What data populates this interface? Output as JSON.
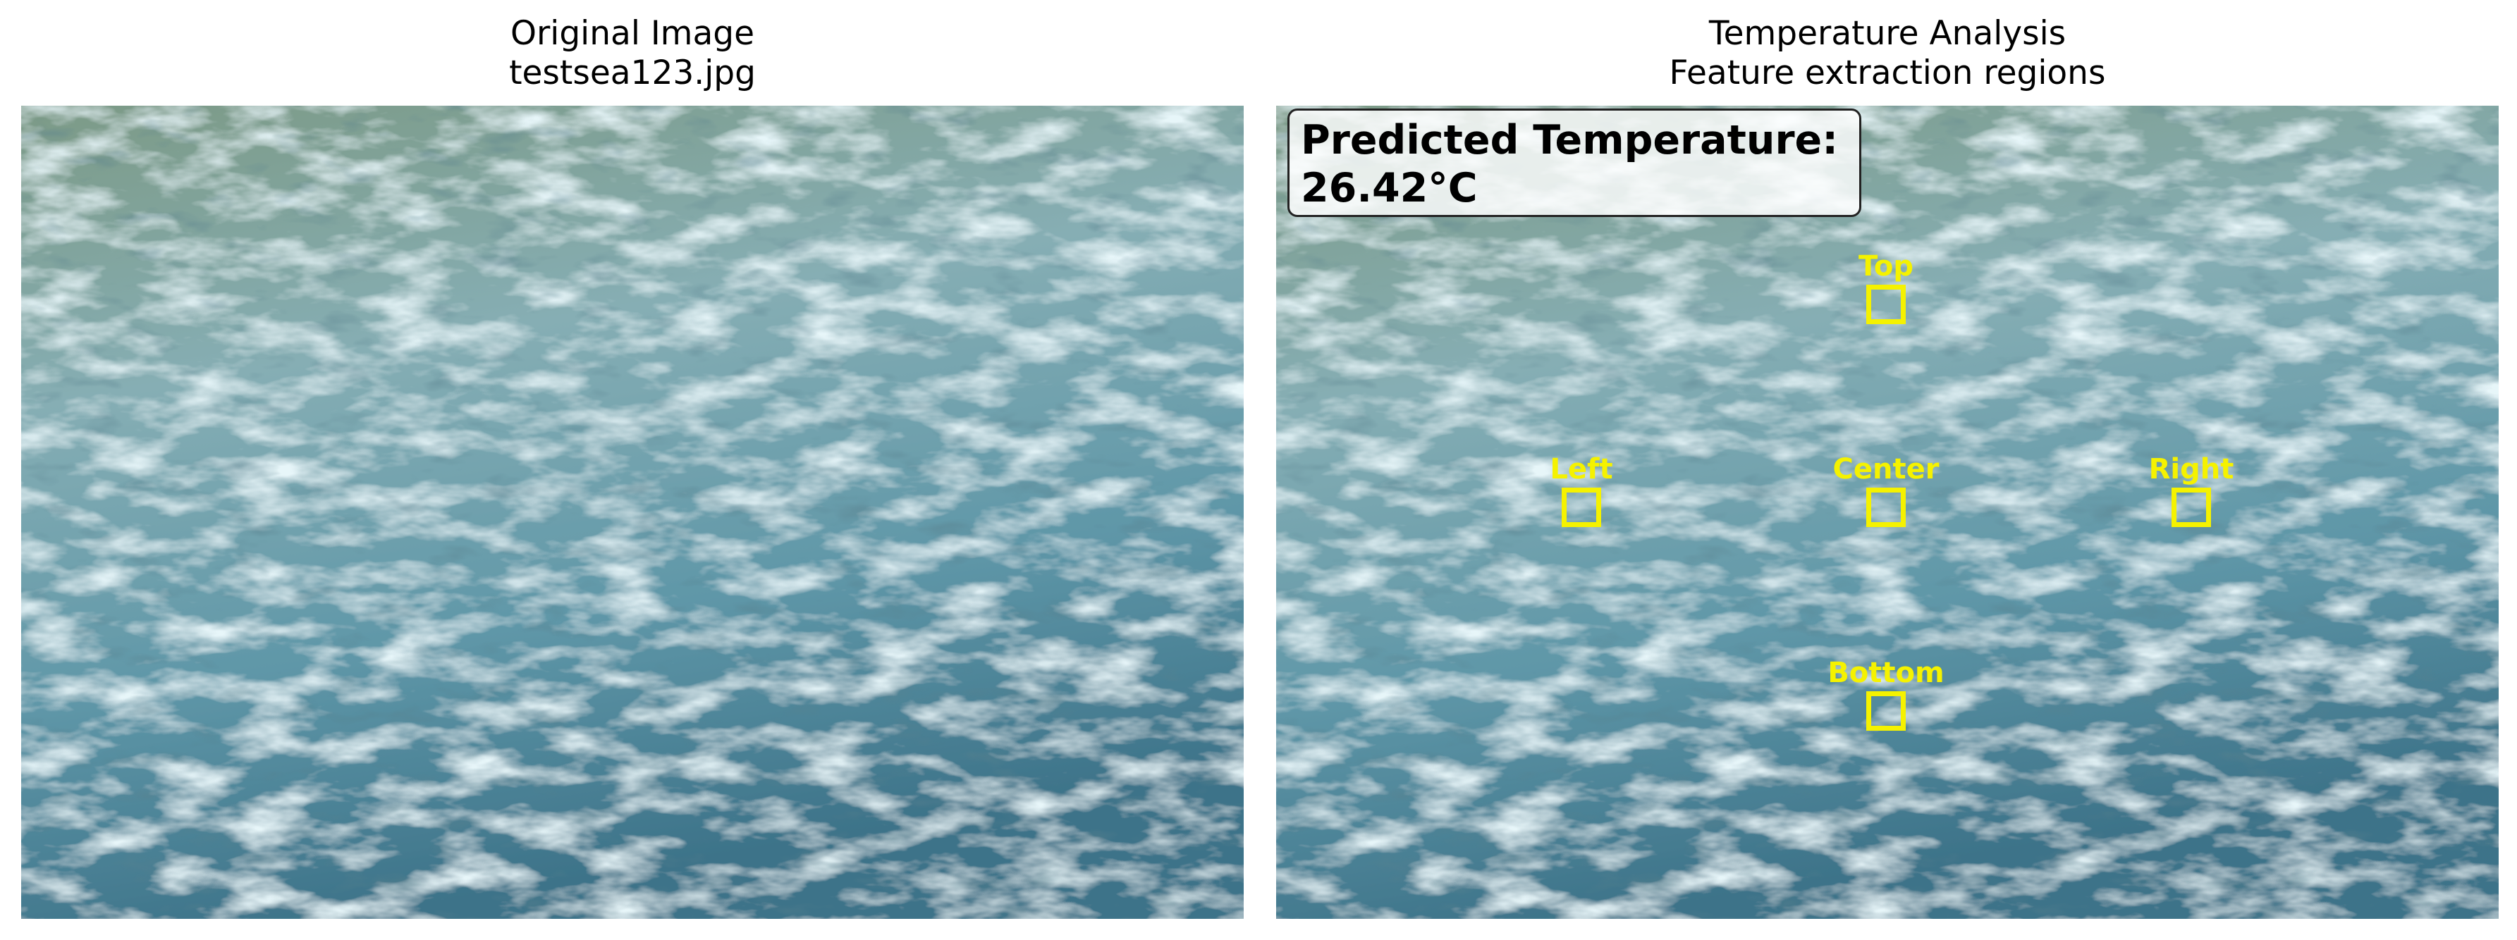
{
  "left_panel": {
    "title_line1": "Original Image",
    "title_line2": "testsea123.jpg"
  },
  "right_panel": {
    "title_line1": "Temperature Analysis",
    "title_line2": "Feature extraction regions",
    "prediction": {
      "label": "Predicted Temperature:",
      "value": "26.42°C"
    },
    "regions": {
      "top": "Top",
      "left": "Left",
      "center": "Center",
      "right": "Right",
      "bottom": "Bottom"
    }
  },
  "colors": {
    "region_marker": "#f5f200",
    "water_light": "#c9e4ea",
    "water_mid": "#6ea3b1",
    "water_dark": "#2f5d6b",
    "water_top_tint": "#7c9a86"
  }
}
